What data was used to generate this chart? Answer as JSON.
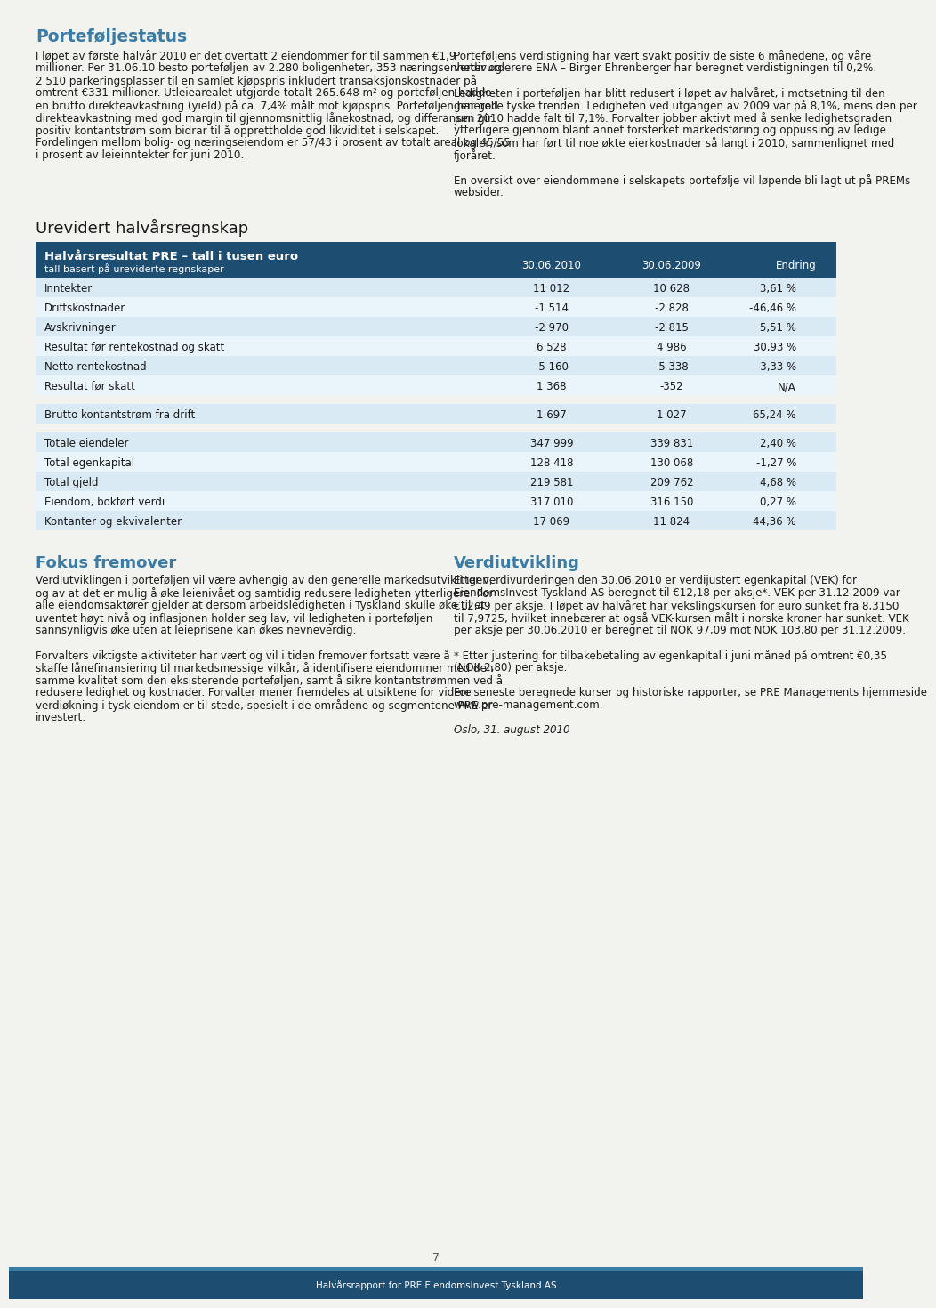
{
  "bg_color": "#f2f2ee",
  "header_bg": "#1e4d72",
  "section_title_color": "#3a7ca5",
  "body_text_color": "#1a1a1a",
  "table_alt_row_even": "#daeaf4",
  "table_alt_row_odd": "#eaf4fb",
  "footer_bg": "#1e4d72",
  "footer_stripe": "#3a7ca5",
  "page_number": "7",
  "footer_label": "Halvårsrapport for PRE EiendomsInvest Tyskland AS",
  "section1_title": "Porteføljestatus",
  "section1_left": "I løpet av første halvår 2010 er det overtatt 2 eiendommer for til sammen €1,9 millioner. Per 31.06.10 besto porteføljen av 2.280 boligenheter, 353 næringsenheter og 2.510 parkeringsplasser til en samlet kjøpspris inkludert transaksjonskostnader på omtrent €331 millioner. Utleiearealet utgjorde totalt 265.648 m² og porteføljen hadde en brutto direkteavkastning (yield) på ca. 7,4% målt mot kjøpspris. Porteføljen har god direkteavkastning med god margin til gjennomsnittlig lånekostnad, og differansen gir positiv kontantstrøm som bidrar til å opprettholde god likviditet i selskapet. Fordelingen mellom bolig- og næringseiendom er 57/43 i prosent av totalt areal og 45/55 i prosent av leieinntekter for juni 2010.",
  "section1_right_paras": [
    "Porteføljens verdistigning har vært svakt positiv de siste 6 månedene, og våre verdivurderere ENA – Birger Ehrenberger har beregnet verdistigningen til 0,2%.",
    "Ledigheten i porteføljen har blitt redusert i løpet av halvåret, i motsetning til den generelle tyske trenden. Ledigheten ved utgangen av 2009 var på 8,1%, mens den per juni 2010 hadde falt til 7,1%. Forvalter jobber aktivt med å senke ledighetsgraden ytterligere gjennom blant annet forsterket markedsføring og oppussing av ledige lokaler, som har ført til noe økte eierkostnader så langt i 2010, sammenlignet med fjoråret.",
    "En oversikt over eiendommene i selskapets portefølje vil løpende bli lagt ut på PREMs websider."
  ],
  "section2_title": "Urevidert halvårsregnskap",
  "table_header_title": "Halvårsresultat PRE – tall i tusen euro",
  "table_header_sub": "tall basert på ureviderte regnskaper",
  "table_col1": "30.06.2010",
  "table_col2": "30.06.2009",
  "table_col3": "Endring",
  "table_rows": [
    [
      "Inntekter",
      "11 012",
      "10 628",
      "3,61 %"
    ],
    [
      "Driftskostnader",
      "-1 514",
      "-2 828",
      "-46,46 %"
    ],
    [
      "Avskrivninger",
      "-2 970",
      "-2 815",
      "5,51 %"
    ],
    [
      "Resultat før rentekostnad og skatt",
      "6 528",
      "4 986",
      "30,93 %"
    ],
    [
      "Netto rentekostnad",
      "-5 160",
      "-5 338",
      "-3,33 %"
    ],
    [
      "Resultat før skatt",
      "1 368",
      "-352",
      "N/A"
    ]
  ],
  "table_extra1": [
    "Brutto kontantstrøm fra drift",
    "1 697",
    "1 027",
    "65,24 %"
  ],
  "table_rows2": [
    [
      "Totale eiendeler",
      "347 999",
      "339 831",
      "2,40 %"
    ],
    [
      "Total egenkapital",
      "128 418",
      "130 068",
      "-1,27 %"
    ],
    [
      "Total gjeld",
      "219 581",
      "209 762",
      "4,68 %"
    ],
    [
      "Eiendom, bokført verdi",
      "317 010",
      "316 150",
      "0,27 %"
    ],
    [
      "Kontanter og ekvivalenter",
      "17 069",
      "11 824",
      "44,36 %"
    ]
  ],
  "section3_title": "Fokus fremover",
  "section3_paras": [
    "Verdiutviklingen i porteføljen vil være avhengig av den generelle markedsutviklingen, og av at det er mulig å øke leienivået og samtidig redusere ledigheten ytterligere. For alle eiendomsaktører gjelder at dersom arbeidsledigheten i Tyskland skulle øke til et uventet høyt nivå og inflasjonen holder seg lav, vil ledigheten i porteføljen sannsynligvis øke uten at leieprisene kan økes nevneverdig.",
    "Forvalters viktigste aktiviteter har vært og vil i tiden fremover fortsatt være å skaffe lånefinansiering til markedsmessige vilkår, å identifisere eiendommer med den samme kvalitet som den eksisterende porteføljen, samt å sikre kontantstrømmen ved å redusere ledighet og kostnader. Forvalter mener fremdeles at utsiktene for videre verdiøkning i tysk eiendom er til stede, spesielt i de områdene og segmentene PRE er investert."
  ],
  "section4_title": "Verdiutvikling",
  "section4_paras": [
    "Etter verdivurderingen den 30.06.2010 er verdijustert egenkapital (VEK) for EiendomsInvest Tyskland AS beregnet til €12,18 per aksje*. VEK per 31.12.2009 var €12,49 per aksje. I løpet av halvåret har vekslingskursen for euro sunket fra 8,3150 til 7,9725, hvilket innebærer at også VEK-kursen målt i norske kroner har sunket. VEK per aksje per 30.06.2010 er beregnet til NOK 97,09 mot NOK 103,80 per 31.12.2009.",
    "* Etter justering for tilbakebetaling av egenkapital i juni måned på omtrent €0,35 (NOK 2,80) per aksje.",
    "For seneste beregnede kurser og historiske rapporter, se PRE Managements hjemmeside www.pre-management.com.",
    "Oslo, 31. august 2010"
  ]
}
